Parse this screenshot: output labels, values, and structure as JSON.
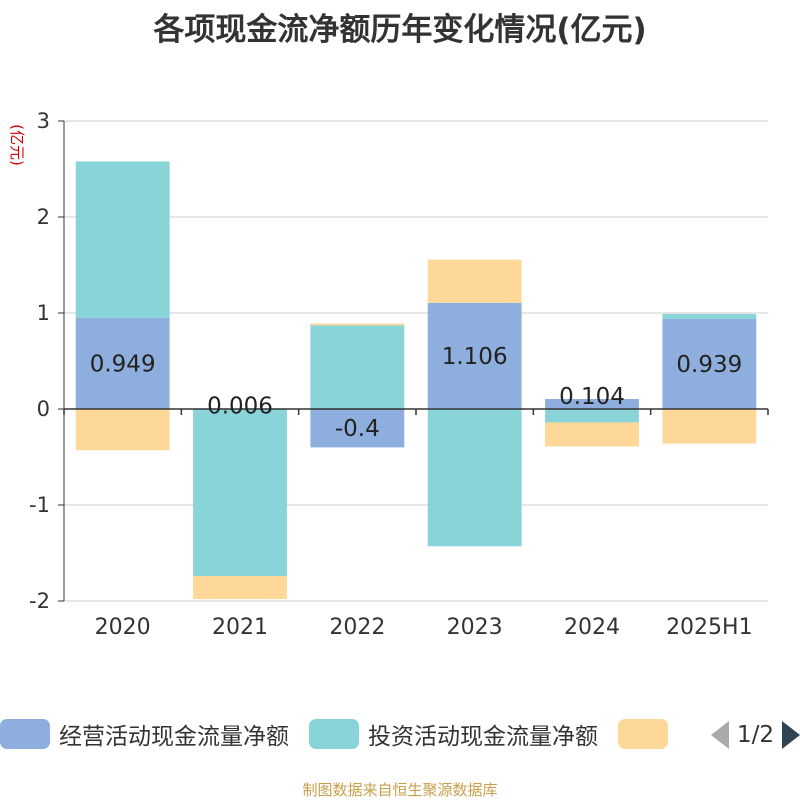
{
  "title": "各项现金流净额历年变化情况(亿元)",
  "footer": "制图数据来自恒生聚源数据库",
  "pager": {
    "text": "1/2"
  },
  "chart_data": {
    "type": "bar",
    "stacked": true,
    "title": "各项现金流净额历年变化情况(亿元)",
    "ylabel": "(亿元)",
    "xlabel": "",
    "ylim": [
      -2,
      3
    ],
    "yticks": [
      -2,
      -1,
      0,
      1,
      2,
      3
    ],
    "grid": true,
    "legend_position": "bottom",
    "categories": [
      "2020",
      "2021",
      "2022",
      "2023",
      "2024",
      "2025H1"
    ],
    "series": [
      {
        "name": "经营活动现金流量净额",
        "color": "#8eaedd",
        "values": [
          0.949,
          0.006,
          -0.4,
          1.106,
          0.104,
          0.939
        ],
        "labels": [
          "0.949",
          "0.006",
          "-0.4",
          "1.106",
          "0.104",
          "0.939"
        ]
      },
      {
        "name": "投资活动现金流量净额",
        "color": "#88d4d8",
        "values": [
          1.63,
          -1.74,
          0.87,
          -1.43,
          -0.14,
          0.05
        ]
      },
      {
        "name": "",
        "color": "#fdd898",
        "values": [
          -0.43,
          -0.24,
          0.02,
          0.45,
          -0.25,
          -0.36
        ]
      }
    ]
  }
}
